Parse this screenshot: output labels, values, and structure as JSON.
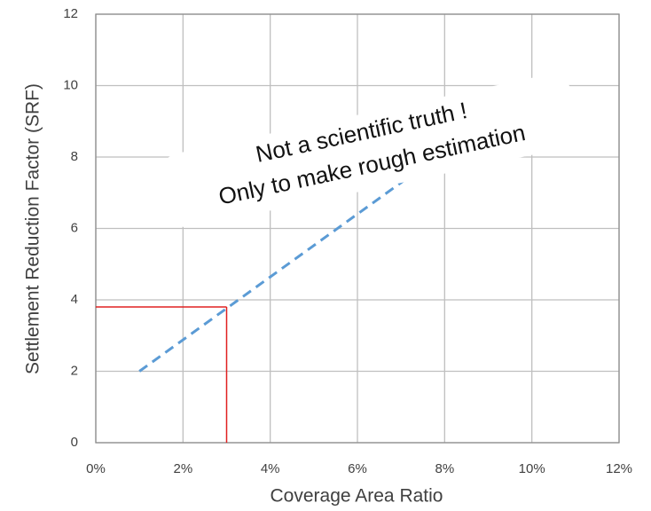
{
  "chart_data": {
    "type": "line",
    "x_label": "Coverage Area Ratio",
    "y_label": "Settlement Reduction Factor (SRF)",
    "xlim": [
      0,
      12
    ],
    "ylim": [
      0,
      12
    ],
    "xticks": [
      {
        "value": 0,
        "label": "0%"
      },
      {
        "value": 2,
        "label": "2%"
      },
      {
        "value": 4,
        "label": "4%"
      },
      {
        "value": 6,
        "label": "6%"
      },
      {
        "value": 8,
        "label": "8%"
      },
      {
        "value": 10,
        "label": "10%"
      },
      {
        "value": 12,
        "label": "12%"
      }
    ],
    "yticks": [
      0,
      2,
      4,
      6,
      8,
      10,
      12
    ],
    "grid": true,
    "series": [
      {
        "x": [
          1,
          7.7
        ],
        "values": [
          2,
          7.9
        ],
        "color": "#5b9bd5",
        "dashed": true
      }
    ],
    "reference_point": {
      "x": 3,
      "y": 3.8,
      "color": "#e02020"
    },
    "annotation": [
      "Not a scientific truth !",
      "Only to make rough estimation"
    ]
  }
}
